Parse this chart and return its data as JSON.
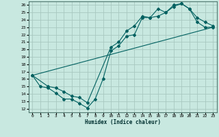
{
  "xlabel": "Humidex (Indice chaleur)",
  "ylabel": "",
  "bg_color": "#c8e8e0",
  "grid_color": "#a8c8c0",
  "line_color": "#006060",
  "xlim": [
    -0.5,
    23.5
  ],
  "ylim": [
    11.5,
    26.5
  ],
  "xticks": [
    0,
    1,
    2,
    3,
    4,
    5,
    6,
    7,
    8,
    9,
    10,
    11,
    12,
    13,
    14,
    15,
    16,
    17,
    18,
    19,
    20,
    21,
    22,
    23
  ],
  "yticks": [
    12,
    13,
    14,
    15,
    16,
    17,
    18,
    19,
    20,
    21,
    22,
    23,
    24,
    25,
    26
  ],
  "line1_x": [
    0,
    1,
    2,
    3,
    4,
    5,
    6,
    7,
    8,
    9,
    10,
    11,
    12,
    13,
    14,
    15,
    16,
    17,
    18,
    19,
    20,
    21,
    22,
    23
  ],
  "line1_y": [
    16.5,
    15.0,
    14.8,
    14.1,
    13.3,
    13.3,
    12.7,
    12.1,
    13.3,
    16.0,
    19.8,
    20.5,
    21.8,
    22.0,
    24.3,
    24.3,
    25.5,
    25.0,
    26.0,
    26.2,
    25.5,
    23.7,
    23.0,
    23.0
  ],
  "line2_x": [
    0,
    2,
    3,
    4,
    5,
    6,
    7,
    10,
    11,
    12,
    13,
    14,
    15,
    16,
    17,
    18,
    19,
    20,
    21,
    22,
    23
  ],
  "line2_y": [
    16.5,
    15.0,
    14.8,
    14.3,
    13.7,
    13.5,
    12.8,
    20.3,
    21.0,
    22.5,
    23.2,
    24.5,
    24.3,
    24.5,
    25.0,
    25.8,
    26.2,
    25.5,
    24.3,
    23.7,
    23.2
  ],
  "line3_x": [
    0,
    23
  ],
  "line3_y": [
    16.5,
    23.0
  ]
}
